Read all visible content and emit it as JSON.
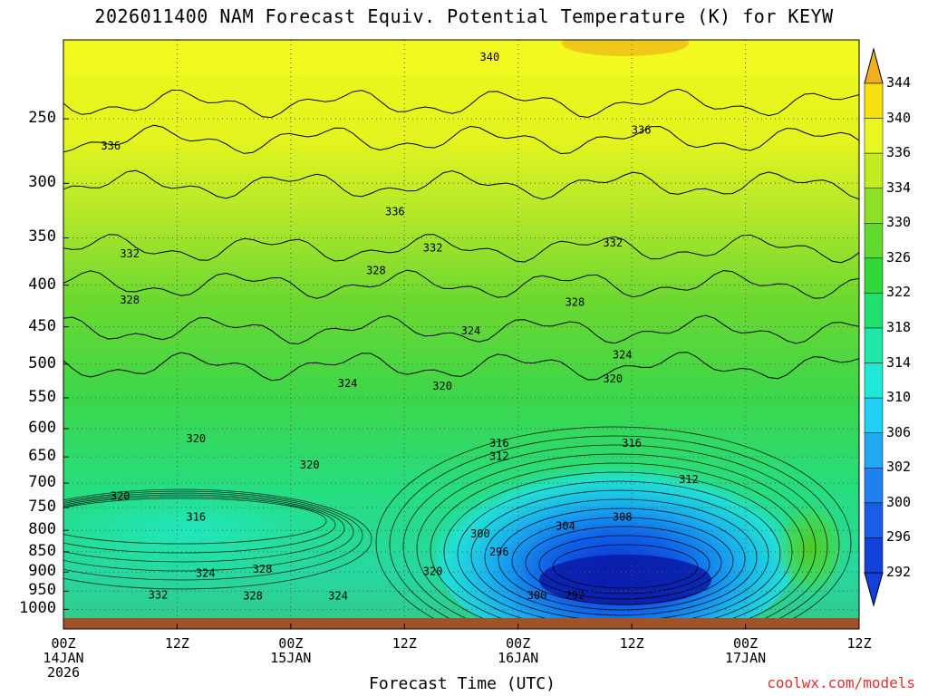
{
  "title": "2026011400 NAM Forecast Equiv. Potential Temperature (K) for KEYW",
  "xaxis_title": "Forecast Time (UTC)",
  "credit": "coolwx.com/models",
  "chart_data": {
    "type": "heatmap",
    "title": "2026011400 NAM Forecast Equiv. Potential Temperature (K) for KEYW",
    "xlabel": "Forecast Time (UTC)",
    "ylabel": "",
    "y_scale": "log-pressure",
    "ylim": [
      1025,
      200
    ],
    "xlim_hours": [
      0,
      84
    ],
    "y_ticks": [
      250,
      300,
      350,
      400,
      450,
      500,
      550,
      600,
      650,
      700,
      750,
      800,
      850,
      900,
      950,
      1000
    ],
    "x_ticks": [
      {
        "hours": 0,
        "label": [
          "00Z",
          "14JAN",
          "2026"
        ]
      },
      {
        "hours": 12,
        "label": [
          "12Z"
        ]
      },
      {
        "hours": 24,
        "label": [
          "00Z",
          "15JAN"
        ]
      },
      {
        "hours": 36,
        "label": [
          "12Z"
        ]
      },
      {
        "hours": 48,
        "label": [
          "00Z",
          "16JAN"
        ]
      },
      {
        "hours": 60,
        "label": [
          "12Z"
        ]
      },
      {
        "hours": 72,
        "label": [
          "00Z",
          "17JAN"
        ]
      },
      {
        "hours": 84,
        "label": [
          "12Z"
        ]
      }
    ],
    "colorbar": {
      "levels": [
        292,
        296,
        300,
        302,
        306,
        310,
        314,
        318,
        322,
        326,
        330,
        334,
        336,
        340,
        344
      ],
      "colors": [
        "#1240d8",
        "#1a5ee8",
        "#2080f0",
        "#20a8f5",
        "#20d0f5",
        "#20e8d8",
        "#20e8a8",
        "#20e070",
        "#30d838",
        "#60d830",
        "#90e028",
        "#c0ec20",
        "#e8f820",
        "#f8e010",
        "#f0b020"
      ]
    },
    "contour_labels": [
      {
        "text": "340",
        "hours": 45,
        "p": 210
      },
      {
        "text": "336",
        "hours": 5,
        "p": 270
      },
      {
        "text": "336",
        "hours": 35,
        "p": 325
      },
      {
        "text": "336",
        "hours": 61,
        "p": 258
      },
      {
        "text": "332",
        "hours": 7,
        "p": 366
      },
      {
        "text": "332",
        "hours": 39,
        "p": 360
      },
      {
        "text": "332",
        "hours": 58,
        "p": 355
      },
      {
        "text": "328",
        "hours": 7,
        "p": 417
      },
      {
        "text": "328",
        "hours": 33,
        "p": 384
      },
      {
        "text": "328",
        "hours": 54,
        "p": 420
      },
      {
        "text": "324",
        "hours": 43,
        "p": 455
      },
      {
        "text": "324",
        "hours": 30,
        "p": 528
      },
      {
        "text": "324",
        "hours": 59,
        "p": 487
      },
      {
        "text": "324",
        "hours": 15,
        "p": 903
      },
      {
        "text": "324",
        "hours": 29,
        "p": 963
      },
      {
        "text": "320",
        "hours": 14,
        "p": 617
      },
      {
        "text": "320",
        "hours": 26,
        "p": 665
      },
      {
        "text": "320",
        "hours": 6,
        "p": 726
      },
      {
        "text": "320",
        "hours": 40,
        "p": 532
      },
      {
        "text": "320",
        "hours": 58,
        "p": 521
      },
      {
        "text": "320",
        "hours": 39,
        "p": 898
      },
      {
        "text": "316",
        "hours": 14,
        "p": 770
      },
      {
        "text": "316",
        "hours": 46,
        "p": 625
      },
      {
        "text": "316",
        "hours": 60,
        "p": 625
      },
      {
        "text": "312",
        "hours": 46,
        "p": 649
      },
      {
        "text": "312",
        "hours": 66,
        "p": 693
      },
      {
        "text": "308",
        "hours": 59,
        "p": 770
      },
      {
        "text": "304",
        "hours": 53,
        "p": 790
      },
      {
        "text": "300",
        "hours": 44,
        "p": 808
      },
      {
        "text": "296",
        "hours": 46,
        "p": 850
      },
      {
        "text": "300",
        "hours": 50,
        "p": 962
      },
      {
        "text": "292",
        "hours": 54,
        "p": 962
      },
      {
        "text": "332",
        "hours": 10,
        "p": 960
      },
      {
        "text": "328",
        "hours": 20,
        "p": 963
      },
      {
        "text": "328",
        "hours": 21,
        "p": 893
      }
    ]
  }
}
